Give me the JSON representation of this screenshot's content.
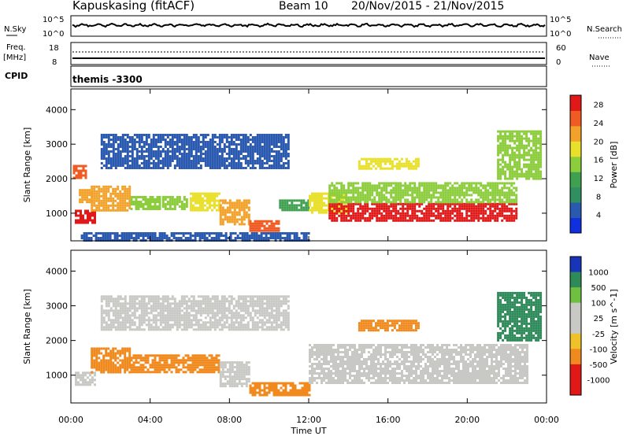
{
  "header": {
    "station": "Kapuskasing (fitACF)",
    "beam": "Beam 10",
    "date_range": "20/Nov/2015 - 21/Nov/2015",
    "cpid_label": "CPID",
    "program": "themis -3300"
  },
  "noise_panel": {
    "left_label": "N.Sky",
    "right_label": "N.Search",
    "ticks": [
      "10^5",
      "10^0"
    ]
  },
  "freq_panel": {
    "left_label_1": "Freq.",
    "left_label_2": "[MHz]",
    "left_ticks": [
      "18",
      "8"
    ],
    "right_label": "Nave",
    "right_ticks": [
      "60",
      "0"
    ]
  },
  "chart_data": [
    {
      "type": "heatmap",
      "name": "power",
      "ylabel": "Slant Range [km]",
      "xlabel": "Time UT",
      "x_ticks": [
        "00:00",
        "04:00",
        "08:00",
        "12:00",
        "16:00",
        "20:00",
        "00:00"
      ],
      "x_range_hours": [
        0,
        24
      ],
      "y_ticks": [
        1000,
        2000,
        3000,
        4000
      ],
      "ylim": [
        200,
        4600
      ],
      "colorbar": {
        "label": "Power [dB]",
        "ticks": [
          "4",
          "8",
          "12",
          "16",
          "20",
          "24",
          "28"
        ],
        "range": [
          0,
          30
        ]
      },
      "regions": [
        {
          "t": [
            0.2,
            1.2
          ],
          "r": [
            700,
            1100
          ],
          "v": 27
        },
        {
          "t": [
            0.4,
            1.0
          ],
          "r": [
            1300,
            1700
          ],
          "v": 22
        },
        {
          "t": [
            0.1,
            0.8
          ],
          "r": [
            2000,
            2400
          ],
          "v": 26
        },
        {
          "t": [
            1.0,
            3.0
          ],
          "r": [
            1100,
            1800
          ],
          "v": 21
        },
        {
          "t": [
            3.0,
            4.5
          ],
          "r": [
            1100,
            1500
          ],
          "v": 14
        },
        {
          "t": [
            4.6,
            5.8
          ],
          "r": [
            1100,
            1500
          ],
          "v": 16
        },
        {
          "t": [
            6.0,
            7.5
          ],
          "r": [
            1100,
            1600
          ],
          "v": 18
        },
        {
          "t": [
            7.5,
            9.0
          ],
          "r": [
            700,
            1400
          ],
          "v": 20
        },
        {
          "t": [
            9.0,
            10.5
          ],
          "r": [
            500,
            800
          ],
          "v": 24
        },
        {
          "t": [
            10.5,
            12.0
          ],
          "r": [
            1100,
            1400
          ],
          "v": 10
        },
        {
          "t": [
            12.0,
            14.0
          ],
          "r": [
            1000,
            1600
          ],
          "v": 18
        },
        {
          "t": [
            13.0,
            22.5
          ],
          "r": [
            800,
            1300
          ],
          "v": 27
        },
        {
          "t": [
            13.0,
            22.5
          ],
          "r": [
            1300,
            1900
          ],
          "v": 14
        },
        {
          "t": [
            14.5,
            17.5
          ],
          "r": [
            2300,
            2600
          ],
          "v": 19
        },
        {
          "t": [
            21.5,
            23.7
          ],
          "r": [
            2000,
            3400
          ],
          "v": 16
        },
        {
          "t": [
            0.5,
            12.0
          ],
          "r": [
            200,
            450
          ],
          "v": 6
        },
        {
          "t": [
            1.5,
            11.0
          ],
          "r": [
            2300,
            3300
          ],
          "v": 4
        }
      ]
    },
    {
      "type": "heatmap",
      "name": "velocity",
      "ylabel": "Slant Range [km]",
      "xlabel": "Time UT",
      "x_ticks": [
        "00:00",
        "04:00",
        "08:00",
        "12:00",
        "16:00",
        "20:00",
        "00:00"
      ],
      "x_range_hours": [
        0,
        24
      ],
      "y_ticks": [
        1000,
        2000,
        3000,
        4000
      ],
      "ylim": [
        200,
        4600
      ],
      "colorbar": {
        "label": "Velocity [m s^-1]",
        "ticks": [
          "1000",
          "500",
          "100",
          "25",
          "-25",
          "-100",
          "-500",
          "-1000"
        ]
      },
      "regions": [
        {
          "t": [
            0.2,
            1.2
          ],
          "r": [
            700,
            1100
          ],
          "v": 0
        },
        {
          "t": [
            1.0,
            3.0
          ],
          "r": [
            1100,
            1800
          ],
          "v": -300
        },
        {
          "t": [
            3.0,
            7.5
          ],
          "r": [
            1100,
            1600
          ],
          "v": -200
        },
        {
          "t": [
            7.5,
            9.0
          ],
          "r": [
            700,
            1400
          ],
          "v": 0
        },
        {
          "t": [
            9.0,
            12.0
          ],
          "r": [
            400,
            800
          ],
          "v": -200
        },
        {
          "t": [
            12.0,
            23.0
          ],
          "r": [
            800,
            1900
          ],
          "v": 0
        },
        {
          "t": [
            14.5,
            17.5
          ],
          "r": [
            2300,
            2600
          ],
          "v": -250
        },
        {
          "t": [
            21.5,
            23.7
          ],
          "r": [
            2000,
            3400
          ],
          "v": 150
        },
        {
          "t": [
            1.5,
            11.0
          ],
          "r": [
            2300,
            3300
          ],
          "v": 0
        }
      ]
    }
  ]
}
